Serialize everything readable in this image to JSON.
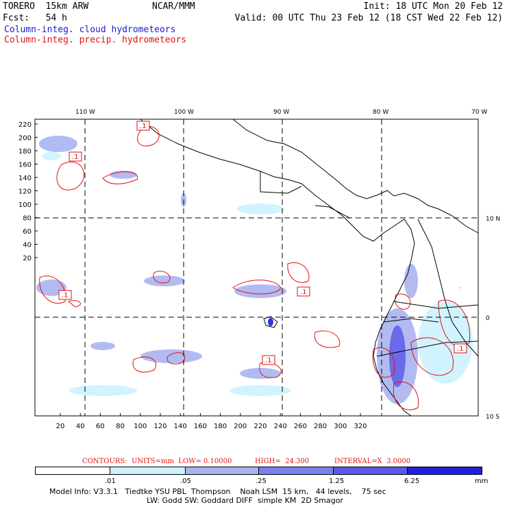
{
  "header": {
    "model": "TORERO  15km ARW",
    "center": "NCAR/MMM",
    "init": "Init: 18 UTC Mon 20 Feb 12",
    "fcst": "Fcst:   54 h",
    "valid": "Valid: 00 UTC Thu 23 Feb 12 (18 CST Wed 22 Feb 12)",
    "field_cloud": "Column-integ. cloud hydrometeors",
    "field_precip": "Column-integ. precip. hydrometeors"
  },
  "colors": {
    "cloud": "#1a1acc",
    "precip": "#e01010"
  },
  "map": {
    "top_lon_labels": [
      "110 W",
      "100 W",
      "90 W",
      "80 W",
      "70 W"
    ],
    "right_lat_labels": [
      "10 N",
      "0",
      "10 S"
    ],
    "y_ticks": [
      "220",
      "200",
      "180",
      "160",
      "140",
      "120",
      "100",
      "80",
      "60",
      "40",
      "20"
    ],
    "x_ticks": [
      "20",
      "40",
      "60",
      "80",
      "100",
      "120",
      "140",
      "160",
      "180",
      "200",
      "220",
      "240",
      "260",
      "280",
      "300",
      "320"
    ],
    "contour_labels": [
      ".1",
      ".1",
      ".1",
      ".1",
      ".1",
      ".1",
      ".1"
    ]
  },
  "contours_info": {
    "contours": "CONTOURS:  UNITS=mm  LOW= 0.10000",
    "high": "HIGH=  24.300",
    "interval": "INTERVAL=X  3.0000"
  },
  "colorbar": {
    "labels": [
      ".01",
      ".05",
      ".25",
      "1.25",
      "6.25"
    ],
    "unit": "mm",
    "colors": [
      "#ffffff",
      "#ccf2ff",
      "#aab4f0",
      "#7a82ec",
      "#5a5ae8",
      "#2020e0"
    ]
  },
  "footer": {
    "line1": "Model Info: V3.3.1   Tiedtke YSU PBL  Thompson    Noah LSM  15 km,   44 levels,    75 sec",
    "line2": "LW: Godd SW: Goddard DIFF  simple KM  2D Smagor"
  }
}
